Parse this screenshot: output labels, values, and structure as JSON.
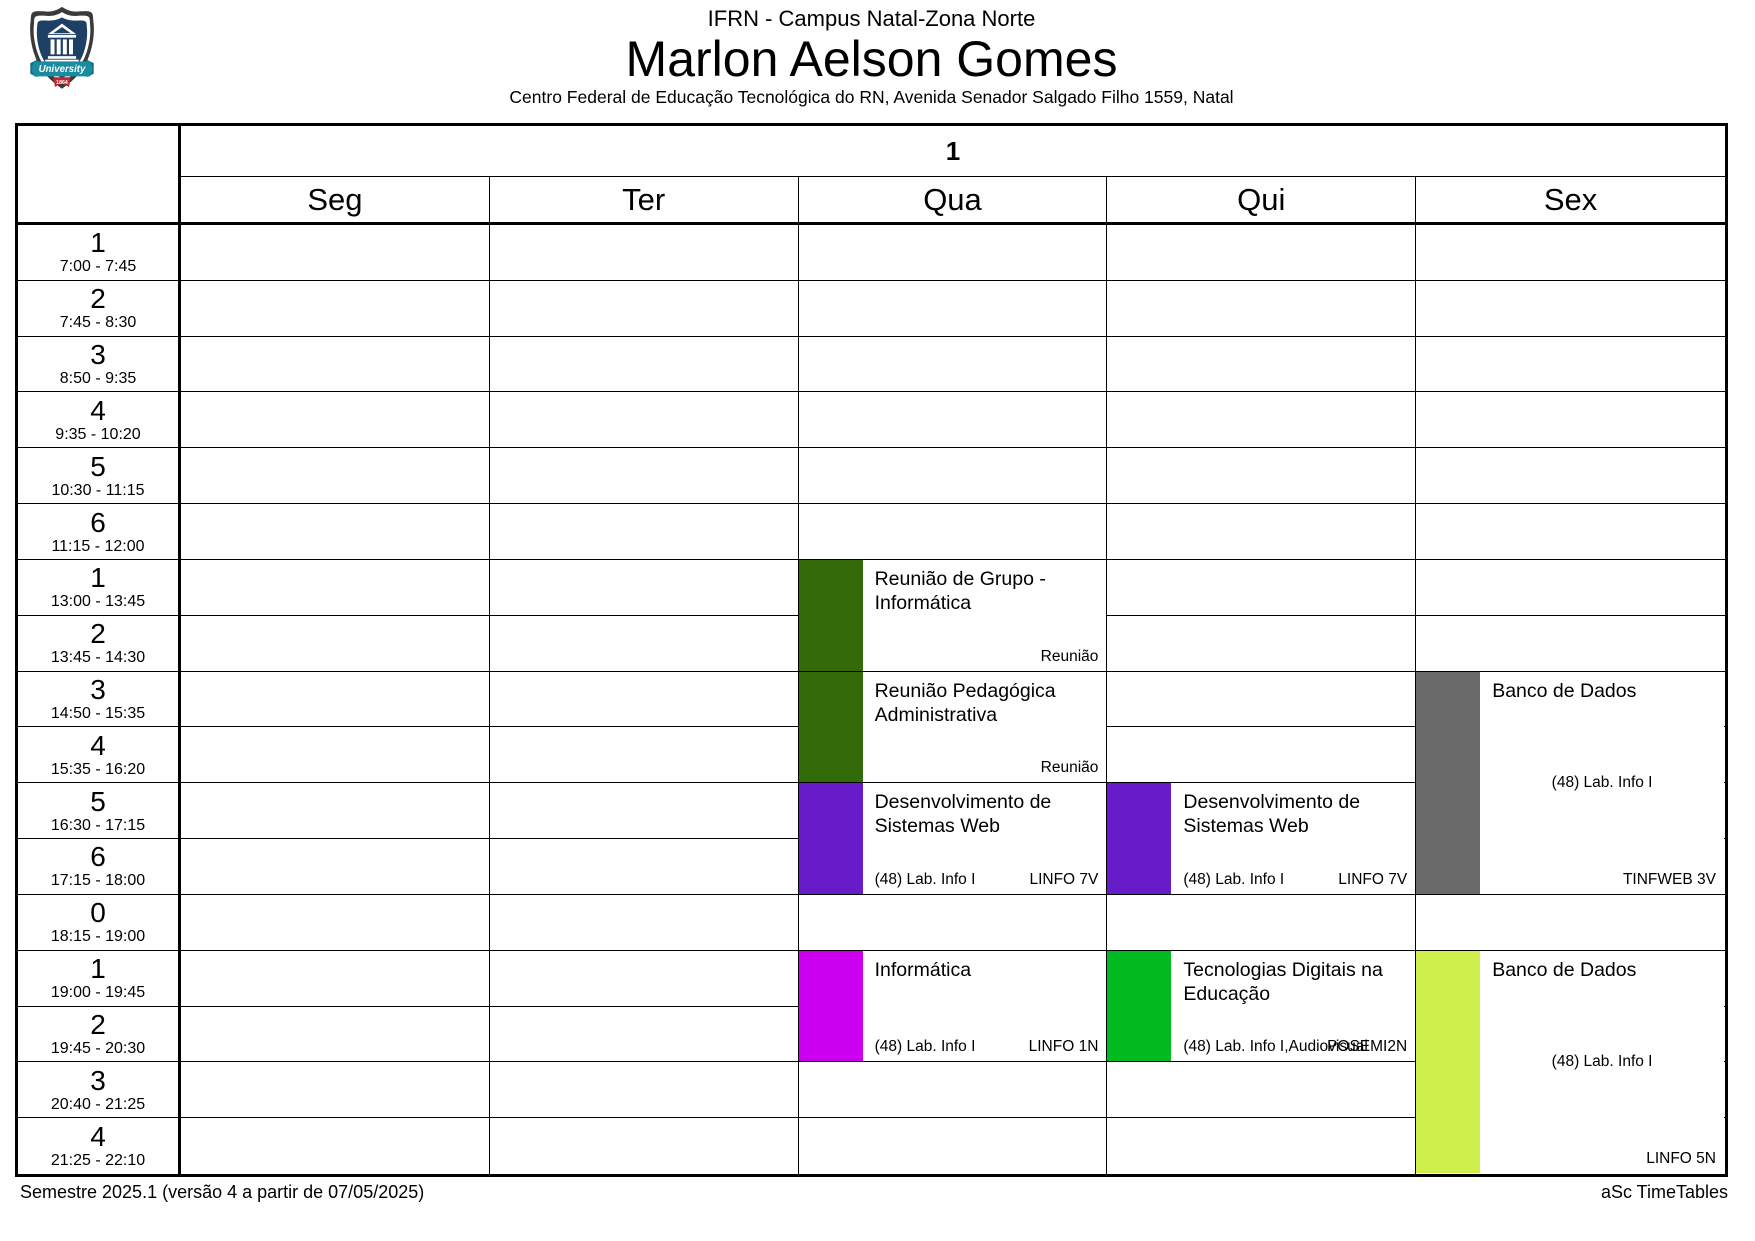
{
  "header": {
    "institution": "IFRN - Campus Natal-Zona Norte",
    "person": "Marlon Aelson Gomes",
    "address": "Centro Federal de Educação Tecnológica do RN, Avenida Senador Salgado Filho 1559, Natal",
    "logo": {
      "banner_text": "University",
      "year_text": "1864",
      "colors": {
        "outline": "#3a3a3c",
        "field": "#1e3f66",
        "banner": "#1b8ca0",
        "banner_dark": "#116b7d",
        "ribbon": "#c1272d",
        "building": "#ffffff"
      }
    }
  },
  "table": {
    "group_label": "1",
    "days": [
      "Seg",
      "Ter",
      "Qua",
      "Qui",
      "Sex"
    ],
    "periods": [
      {
        "num": "1",
        "time": "7:00 - 7:45"
      },
      {
        "num": "2",
        "time": "7:45 - 8:30"
      },
      {
        "num": "3",
        "time": "8:50 - 9:35"
      },
      {
        "num": "4",
        "time": "9:35 - 10:20"
      },
      {
        "num": "5",
        "time": "10:30 - 11:15"
      },
      {
        "num": "6",
        "time": "11:15 - 12:00"
      },
      {
        "num": "1",
        "time": "13:00 - 13:45"
      },
      {
        "num": "2",
        "time": "13:45 - 14:30"
      },
      {
        "num": "3",
        "time": "14:50 - 15:35"
      },
      {
        "num": "4",
        "time": "15:35 - 16:20"
      },
      {
        "num": "5",
        "time": "16:30 - 17:15"
      },
      {
        "num": "6",
        "time": "17:15 - 18:00"
      },
      {
        "num": "0",
        "time": "18:15 - 19:00"
      },
      {
        "num": "1",
        "time": "19:00 - 19:45"
      },
      {
        "num": "2",
        "time": "19:45 - 20:30"
      },
      {
        "num": "3",
        "time": "20:40 - 21:25"
      },
      {
        "num": "4",
        "time": "21:25 - 22:10"
      }
    ]
  },
  "events": [
    {
      "day": 2,
      "row": 6,
      "span": 2,
      "title": "Reunião de Grupo - Informática",
      "room": "",
      "class_label": "Reunião",
      "color": "#336b0b"
    },
    {
      "day": 2,
      "row": 8,
      "span": 2,
      "title": "Reunião Pedagógica Administrativa",
      "room": "",
      "class_label": "Reunião",
      "color": "#336b0b"
    },
    {
      "day": 2,
      "row": 10,
      "span": 2,
      "title": "Desenvolvimento de Sistemas Web",
      "room": "(48) Lab. Info I",
      "class_label": "LINFO 7V",
      "color": "#671bc9"
    },
    {
      "day": 3,
      "row": 10,
      "span": 2,
      "title": "Desenvolvimento de Sistemas Web",
      "room": "(48) Lab. Info I",
      "class_label": "LINFO 7V",
      "color": "#671bc9"
    },
    {
      "day": 4,
      "row": 8,
      "span": 4,
      "title": "Banco de Dados",
      "room": "(48) Lab. Info I",
      "class_label": "TINFWEB 3V",
      "color": "#6a6a6a"
    },
    {
      "day": 2,
      "row": 13,
      "span": 2,
      "title": "Informática",
      "room": "(48) Lab. Info I",
      "class_label": "LINFO 1N",
      "color": "#cc00ee"
    },
    {
      "day": 3,
      "row": 13,
      "span": 2,
      "title": "Tecnologias Digitais na Educação",
      "room": "(48) Lab. Info I,Audiovisual",
      "class_label": "POSEMI2N",
      "color": "#00ba1f"
    },
    {
      "day": 4,
      "row": 13,
      "span": 4,
      "title": "Banco de Dados",
      "room": "(48) Lab. Info I",
      "class_label": "LINFO 5N",
      "color": "#cff04c"
    }
  ],
  "footer": {
    "left": "Semestre 2025.1 (versão 4 a partir de 07/05/2025)",
    "right": "aSc TimeTables"
  }
}
